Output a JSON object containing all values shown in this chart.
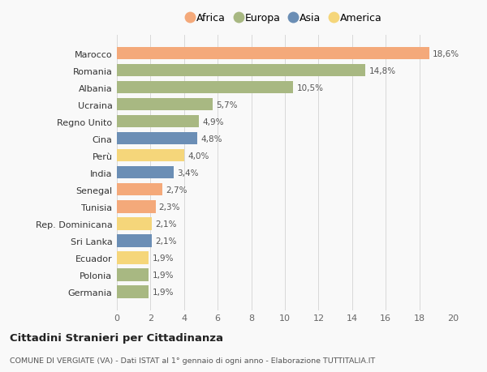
{
  "countries": [
    "Germania",
    "Polonia",
    "Ecuador",
    "Sri Lanka",
    "Rep. Dominicana",
    "Tunisia",
    "Senegal",
    "India",
    "Perù",
    "Cina",
    "Regno Unito",
    "Ucraina",
    "Albania",
    "Romania",
    "Marocco"
  ],
  "values": [
    1.9,
    1.9,
    1.9,
    2.1,
    2.1,
    2.3,
    2.7,
    3.4,
    4.0,
    4.8,
    4.9,
    5.7,
    10.5,
    14.8,
    18.6
  ],
  "labels": [
    "1,9%",
    "1,9%",
    "1,9%",
    "2,1%",
    "2,1%",
    "2,3%",
    "2,7%",
    "3,4%",
    "4,0%",
    "4,8%",
    "4,9%",
    "5,7%",
    "10,5%",
    "14,8%",
    "18,6%"
  ],
  "continents": [
    "Europa",
    "Europa",
    "America",
    "Asia",
    "America",
    "Africa",
    "Africa",
    "Asia",
    "America",
    "Asia",
    "Europa",
    "Europa",
    "Europa",
    "Europa",
    "Africa"
  ],
  "colors": {
    "Africa": "#F4A97A",
    "Europa": "#A8B882",
    "Asia": "#6B8EB5",
    "America": "#F5D67A"
  },
  "legend_order": [
    "Africa",
    "Europa",
    "Asia",
    "America"
  ],
  "legend_colors": {
    "Africa": "#F4A97A",
    "Europa": "#A8B882",
    "Asia": "#6B8EB5",
    "America": "#F5D67A"
  },
  "xlim": [
    0,
    20
  ],
  "xticks": [
    0,
    2,
    4,
    6,
    8,
    10,
    12,
    14,
    16,
    18,
    20
  ],
  "title1": "Cittadini Stranieri per Cittadinanza",
  "title2": "COMUNE DI VERGIATE (VA) - Dati ISTAT al 1° gennaio di ogni anno - Elaborazione TUTTITALIA.IT",
  "background_color": "#f9f9f9",
  "bar_height": 0.72,
  "grid_color": "#d8d8d8"
}
